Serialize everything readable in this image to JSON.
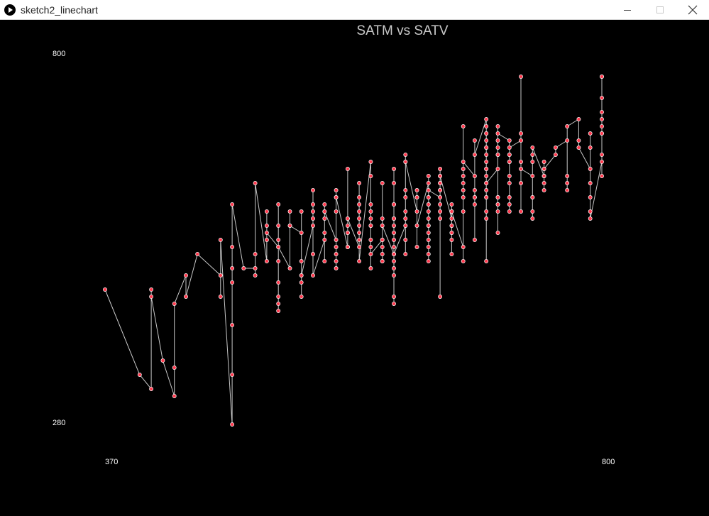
{
  "window": {
    "title": "sketch2_linechart",
    "icon": "play-icon",
    "controls": [
      "minimize-icon",
      "maximize-icon",
      "close-icon"
    ]
  },
  "colors": {
    "background": "#000000",
    "line": "#c8c8c8",
    "point_fill": "#ff3b4f",
    "point_stroke": "#ffffff",
    "text": "#ffffff",
    "title_text": "#c8c8c8"
  },
  "chart_data": {
    "type": "line",
    "title": "SATM vs SATV",
    "xlabel": "",
    "ylabel": "",
    "xlim": [
      370,
      800
    ],
    "ylim": [
      280,
      800
    ],
    "x_tick_labels": [
      "370",
      "800"
    ],
    "y_tick_labels": [
      "800",
      "280"
    ],
    "grid": false,
    "legend": "none",
    "points": [
      [
        370,
        470
      ],
      [
        400,
        350
      ],
      [
        410,
        330
      ],
      [
        410,
        470
      ],
      [
        410,
        460
      ],
      [
        420,
        370
      ],
      [
        430,
        320
      ],
      [
        430,
        360
      ],
      [
        430,
        450
      ],
      [
        440,
        490
      ],
      [
        440,
        460
      ],
      [
        450,
        520
      ],
      [
        470,
        490
      ],
      [
        470,
        460
      ],
      [
        470,
        540
      ],
      [
        480,
        280
      ],
      [
        480,
        420
      ],
      [
        480,
        500
      ],
      [
        480,
        350
      ],
      [
        480,
        480
      ],
      [
        480,
        530
      ],
      [
        480,
        590
      ],
      [
        490,
        500
      ],
      [
        500,
        500
      ],
      [
        500,
        490
      ],
      [
        500,
        520
      ],
      [
        500,
        620
      ],
      [
        510,
        510
      ],
      [
        510,
        540
      ],
      [
        510,
        560
      ],
      [
        510,
        580
      ],
      [
        510,
        550
      ],
      [
        520,
        530
      ],
      [
        520,
        560
      ],
      [
        520,
        590
      ],
      [
        520,
        540
      ],
      [
        520,
        510
      ],
      [
        520,
        460
      ],
      [
        520,
        480
      ],
      [
        520,
        450
      ],
      [
        520,
        440
      ],
      [
        520,
        530
      ],
      [
        530,
        500
      ],
      [
        530,
        580
      ],
      [
        530,
        560
      ],
      [
        530,
        560
      ],
      [
        540,
        550
      ],
      [
        540,
        580
      ],
      [
        540,
        510
      ],
      [
        540,
        460
      ],
      [
        540,
        480
      ],
      [
        540,
        490
      ],
      [
        540,
        490
      ],
      [
        550,
        560
      ],
      [
        550,
        610
      ],
      [
        550,
        570
      ],
      [
        550,
        520
      ],
      [
        550,
        580
      ],
      [
        550,
        590
      ],
      [
        550,
        490
      ],
      [
        560,
        540
      ],
      [
        560,
        510
      ],
      [
        560,
        550
      ],
      [
        560,
        570
      ],
      [
        560,
        580
      ],
      [
        560,
        590
      ],
      [
        560,
        580
      ],
      [
        570,
        540
      ],
      [
        570,
        510
      ],
      [
        570,
        500
      ],
      [
        570,
        610
      ],
      [
        570,
        530
      ],
      [
        570,
        580
      ],
      [
        570,
        520
      ],
      [
        570,
        600
      ],
      [
        570,
        600
      ],
      [
        580,
        530
      ],
      [
        580,
        550
      ],
      [
        580,
        530
      ],
      [
        580,
        640
      ],
      [
        580,
        530
      ],
      [
        580,
        550
      ],
      [
        580,
        560
      ],
      [
        580,
        570
      ],
      [
        580,
        570
      ],
      [
        590,
        530
      ],
      [
        590,
        560
      ],
      [
        590,
        580
      ],
      [
        590,
        620
      ],
      [
        590,
        590
      ],
      [
        590,
        600
      ],
      [
        590,
        570
      ],
      [
        590,
        550
      ],
      [
        590,
        540
      ],
      [
        590,
        510
      ],
      [
        600,
        650
      ],
      [
        600,
        560
      ],
      [
        600,
        590
      ],
      [
        600,
        570
      ],
      [
        600,
        580
      ],
      [
        600,
        630
      ],
      [
        600,
        560
      ],
      [
        600,
        530
      ],
      [
        600,
        540
      ],
      [
        600,
        500
      ],
      [
        600,
        520
      ],
      [
        610,
        540
      ],
      [
        610,
        520
      ],
      [
        610,
        510
      ],
      [
        610,
        560
      ],
      [
        610,
        570
      ],
      [
        610,
        540
      ],
      [
        610,
        510
      ],
      [
        610,
        530
      ],
      [
        610,
        620
      ],
      [
        610,
        560
      ],
      [
        620,
        520
      ],
      [
        620,
        510
      ],
      [
        620,
        490
      ],
      [
        620,
        450
      ],
      [
        620,
        460
      ],
      [
        620,
        530
      ],
      [
        620,
        570
      ],
      [
        620,
        500
      ],
      [
        620,
        520
      ],
      [
        620,
        540
      ],
      [
        620,
        550
      ],
      [
        620,
        560
      ],
      [
        620,
        570
      ],
      [
        620,
        590
      ],
      [
        620,
        590
      ],
      [
        620,
        620
      ],
      [
        620,
        640
      ],
      [
        620,
        520
      ],
      [
        630,
        560
      ],
      [
        630,
        600
      ],
      [
        630,
        610
      ],
      [
        630,
        560
      ],
      [
        630,
        520
      ],
      [
        630,
        540
      ],
      [
        630,
        570
      ],
      [
        630,
        580
      ],
      [
        630,
        650
      ],
      [
        630,
        660
      ],
      [
        630,
        650
      ],
      [
        640,
        580
      ],
      [
        640,
        530
      ],
      [
        640,
        600
      ],
      [
        640,
        610
      ],
      [
        640,
        600
      ],
      [
        640,
        560
      ],
      [
        650,
        620
      ],
      [
        650,
        550
      ],
      [
        650,
        590
      ],
      [
        650,
        570
      ],
      [
        650,
        560
      ],
      [
        650,
        540
      ],
      [
        650,
        580
      ],
      [
        650,
        560
      ],
      [
        650,
        530
      ],
      [
        650,
        510
      ],
      [
        650,
        520
      ],
      [
        650,
        630
      ],
      [
        650,
        600
      ],
      [
        650,
        590
      ],
      [
        650,
        600
      ],
      [
        650,
        610
      ],
      [
        660,
        600
      ],
      [
        660,
        620
      ],
      [
        660,
        610
      ],
      [
        660,
        640
      ],
      [
        660,
        630
      ],
      [
        660,
        590
      ],
      [
        660,
        570
      ],
      [
        660,
        580
      ],
      [
        660,
        620
      ],
      [
        660,
        610
      ],
      [
        660,
        460
      ],
      [
        660,
        630
      ],
      [
        670,
        570
      ],
      [
        670,
        580
      ],
      [
        670,
        560
      ],
      [
        670,
        590
      ],
      [
        670,
        580
      ],
      [
        670,
        550
      ],
      [
        670,
        560
      ],
      [
        670,
        550
      ],
      [
        670,
        540
      ],
      [
        670,
        520
      ],
      [
        670,
        580
      ],
      [
        680,
        530
      ],
      [
        680,
        580
      ],
      [
        680,
        510
      ],
      [
        680,
        600
      ],
      [
        680,
        620
      ],
      [
        680,
        640
      ],
      [
        680,
        630
      ],
      [
        680,
        610
      ],
      [
        680,
        700
      ],
      [
        680,
        650
      ],
      [
        690,
        630
      ],
      [
        690,
        590
      ],
      [
        690,
        600
      ],
      [
        690,
        540
      ],
      [
        690,
        600
      ],
      [
        690,
        610
      ],
      [
        690,
        680
      ],
      [
        690,
        660
      ],
      [
        700,
        710
      ],
      [
        700,
        630
      ],
      [
        700,
        640
      ],
      [
        700,
        650
      ],
      [
        700,
        690
      ],
      [
        700,
        670
      ],
      [
        700,
        600
      ],
      [
        700,
        610
      ],
      [
        700,
        640
      ],
      [
        700,
        660
      ],
      [
        700,
        570
      ],
      [
        700,
        620
      ],
      [
        700,
        580
      ],
      [
        700,
        600
      ],
      [
        700,
        510
      ],
      [
        700,
        670
      ],
      [
        700,
        680
      ],
      [
        700,
        690
      ],
      [
        700,
        700
      ],
      [
        700,
        620
      ],
      [
        710,
        640
      ],
      [
        710,
        590
      ],
      [
        710,
        600
      ],
      [
        710,
        660
      ],
      [
        710,
        670
      ],
      [
        710,
        660
      ],
      [
        710,
        680
      ],
      [
        710,
        550
      ],
      [
        710,
        580
      ],
      [
        710,
        590
      ],
      [
        710,
        600
      ],
      [
        710,
        700
      ],
      [
        710,
        690
      ],
      [
        720,
        680
      ],
      [
        720,
        650
      ],
      [
        720,
        660
      ],
      [
        720,
        650
      ],
      [
        720,
        600
      ],
      [
        720,
        580
      ],
      [
        720,
        590
      ],
      [
        720,
        630
      ],
      [
        720,
        620
      ],
      [
        720,
        660
      ],
      [
        720,
        670
      ],
      [
        730,
        680
      ],
      [
        730,
        690
      ],
      [
        730,
        650
      ],
      [
        730,
        620
      ],
      [
        730,
        580
      ],
      [
        730,
        770
      ],
      [
        730,
        640
      ],
      [
        740,
        630
      ],
      [
        740,
        600
      ],
      [
        740,
        650
      ],
      [
        740,
        660
      ],
      [
        740,
        580
      ],
      [
        740,
        570
      ],
      [
        740,
        600
      ],
      [
        740,
        670
      ],
      [
        750,
        630
      ],
      [
        750,
        610
      ],
      [
        750,
        650
      ],
      [
        750,
        630
      ],
      [
        750,
        640
      ],
      [
        750,
        630
      ],
      [
        750,
        620
      ],
      [
        750,
        640
      ],
      [
        760,
        660
      ],
      [
        760,
        670
      ],
      [
        770,
        680
      ],
      [
        770,
        610
      ],
      [
        770,
        620
      ],
      [
        770,
        630
      ],
      [
        770,
        700
      ],
      [
        780,
        710
      ],
      [
        780,
        680
      ],
      [
        780,
        670
      ],
      [
        790,
        640
      ],
      [
        790,
        670
      ],
      [
        790,
        690
      ],
      [
        790,
        600
      ],
      [
        790,
        620
      ],
      [
        790,
        580
      ],
      [
        790,
        570
      ],
      [
        800,
        650
      ],
      [
        800,
        660
      ],
      [
        800,
        690
      ],
      [
        800,
        700
      ],
      [
        800,
        710
      ],
      [
        800,
        740
      ],
      [
        800,
        770
      ],
      [
        800,
        770
      ],
      [
        800,
        720
      ],
      [
        800,
        690
      ],
      [
        800,
        630
      ]
    ]
  }
}
